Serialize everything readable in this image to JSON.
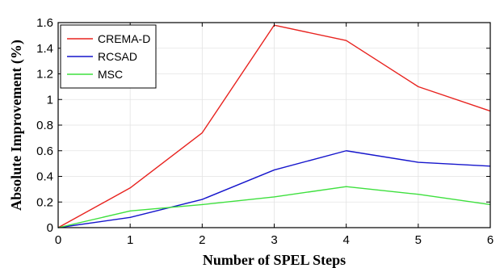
{
  "chart_data": {
    "type": "line",
    "title": "",
    "xlabel": "Number of SPEL Steps",
    "ylabel": "Absolute Improvement (%)",
    "x": [
      0,
      1,
      2,
      3,
      4,
      5,
      6
    ],
    "xlim": [
      0,
      6
    ],
    "ylim": [
      0,
      1.6
    ],
    "xticks": [
      "0",
      "1",
      "2",
      "3",
      "4",
      "5",
      "6"
    ],
    "yticks": [
      "0",
      "0.2",
      "0.4",
      "0.6",
      "0.8",
      "1",
      "1.2",
      "1.4",
      "1.6"
    ],
    "grid": true,
    "legend_position": "top-left",
    "series": [
      {
        "name": "CREMA-D",
        "color": "#e8231f",
        "values": [
          0,
          0.31,
          0.74,
          1.58,
          1.46,
          1.1,
          0.91
        ]
      },
      {
        "name": "RCSAD",
        "color": "#1515cc",
        "values": [
          0,
          0.08,
          0.22,
          0.45,
          0.6,
          0.51,
          0.48
        ]
      },
      {
        "name": "MSC",
        "color": "#3ee03e",
        "values": [
          0,
          0.13,
          0.18,
          0.24,
          0.32,
          0.26,
          0.18
        ]
      }
    ]
  }
}
